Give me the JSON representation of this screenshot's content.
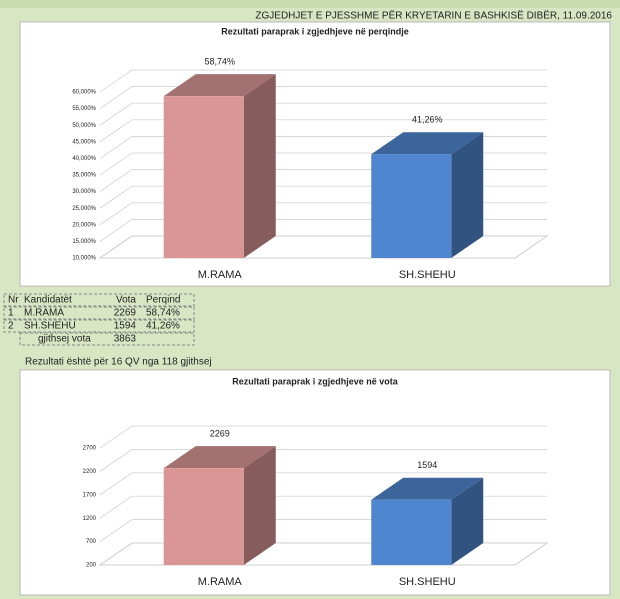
{
  "header": {
    "title": "ZGJEDHJET E PJESSHME PËR KRYETARIN E BASHKISË DIBËR, 11.09.2016"
  },
  "chart_data": [
    {
      "type": "bar3d",
      "title": "Rezultati paraprak i zgjedhjeve në perqindje",
      "categories": [
        "M.RAMA",
        "SH.SHEHU"
      ],
      "values": [
        58.74,
        41.26
      ],
      "value_labels": [
        "58,74%",
        "41,26%"
      ],
      "colors": [
        "#d99694",
        "#4f86cf"
      ],
      "ylim": [
        10,
        60
      ],
      "yticks": [
        {
          "value": 10,
          "label": "10,000%"
        },
        {
          "value": 15,
          "label": "15,000%"
        },
        {
          "value": 20,
          "label": "20,000%"
        },
        {
          "value": 25,
          "label": "25,000%"
        },
        {
          "value": 30,
          "label": "30,000%"
        },
        {
          "value": 35,
          "label": "35,000%"
        },
        {
          "value": 40,
          "label": "40,000%"
        },
        {
          "value": 45,
          "label": "45,000%"
        },
        {
          "value": 50,
          "label": "50,000%"
        },
        {
          "value": 55,
          "label": "55,000%"
        },
        {
          "value": 60,
          "label": "60,000%"
        }
      ],
      "grid": true
    },
    {
      "type": "bar3d",
      "title": "Rezultati paraprak i zgjedhjeve në vota",
      "categories": [
        "M.RAMA",
        "SH.SHEHU"
      ],
      "values": [
        2269,
        1594
      ],
      "colors": [
        "#d99694",
        "#4f86cf"
      ],
      "ylim": [
        200,
        2700
      ],
      "yticks": [
        200,
        700,
        1200,
        1700,
        2200,
        2700
      ],
      "grid": true
    }
  ],
  "table": {
    "columns": [
      "Nr",
      "Kandidatët",
      "Vota",
      "Perqind"
    ],
    "rows": [
      [
        "1",
        "M.RAMA",
        "2269",
        "58,74%"
      ],
      [
        "2",
        "SH.SHEHU",
        "1594",
        "41,26%"
      ]
    ],
    "total": {
      "label": "gjithsej vota",
      "votes": "3863"
    }
  },
  "note": "Rezultati është për 16 QV nga 118 gjithsej"
}
